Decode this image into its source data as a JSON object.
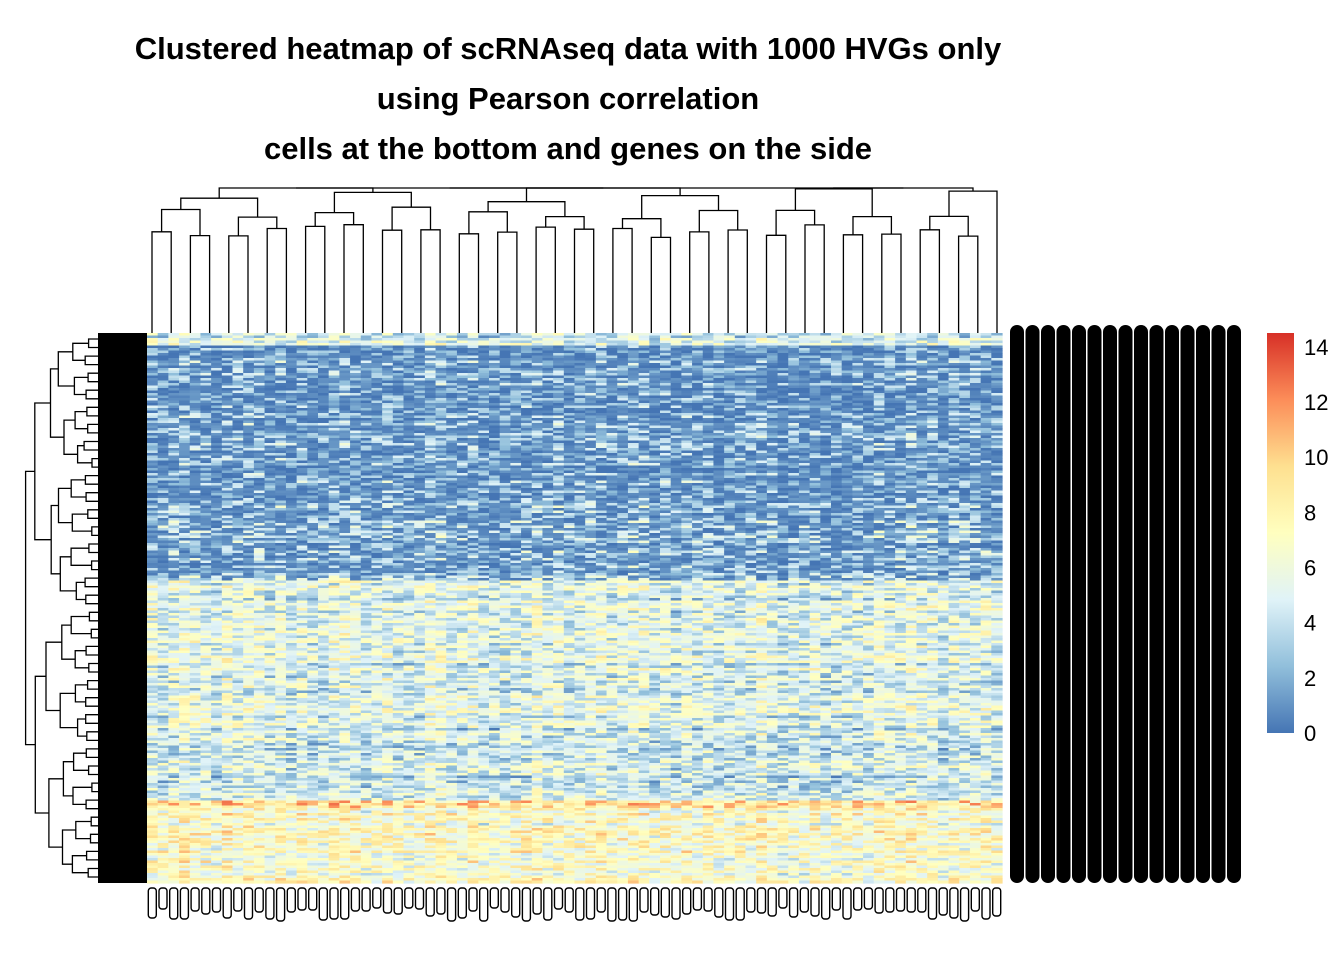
{
  "chart_data": {
    "type": "heatmap",
    "title_lines": [
      "Clustered heatmap of scRNAseq data with 1000 HVGs only",
      "using Pearson correlation",
      "cells at the bottom and genes on the side"
    ],
    "legend": {
      "position": "right",
      "ticks": [
        0,
        2,
        4,
        6,
        8,
        10,
        12,
        14
      ],
      "range": [
        0,
        14.5
      ],
      "colors": [
        "#4575b4",
        "#91bfdb",
        "#e0f3f8",
        "#ffffbf",
        "#fee090",
        "#fc8d59",
        "#d73027"
      ]
    },
    "n_genes": 1000,
    "cluster_rows": true,
    "cluster_cols": true,
    "row_labels_legible": false,
    "col_labels_legible": false,
    "row_bands": [
      {
        "from": 0.0,
        "to": 0.02,
        "mean": 4.5
      },
      {
        "from": 0.02,
        "to": 0.3,
        "mean": 2.2
      },
      {
        "from": 0.3,
        "to": 0.45,
        "mean": 3.0
      },
      {
        "from": 0.45,
        "to": 0.71,
        "mean": 5.0
      },
      {
        "from": 0.71,
        "to": 0.85,
        "mean": 4.2
      },
      {
        "from": 0.85,
        "to": 0.86,
        "mean": 10.0
      },
      {
        "from": 0.86,
        "to": 1.0,
        "mean": 6.8
      }
    ]
  }
}
